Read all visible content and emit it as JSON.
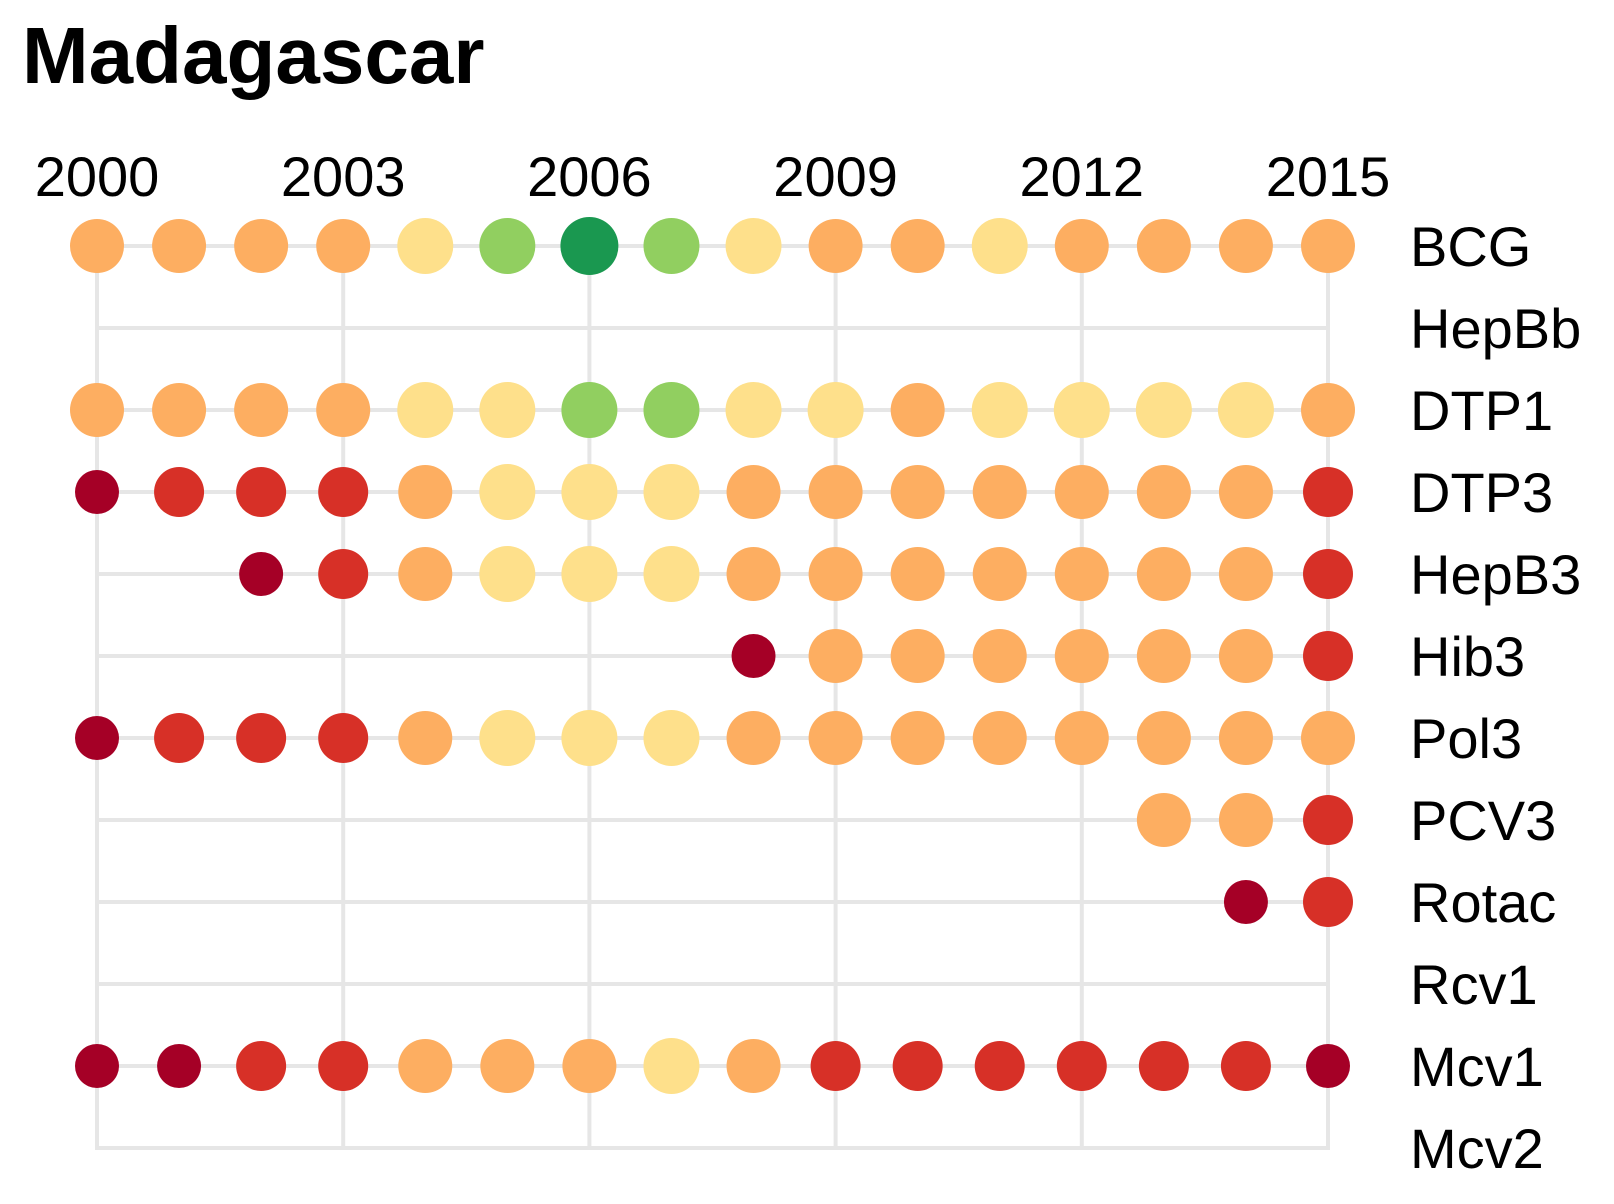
{
  "chart_data": {
    "type": "scatter",
    "title": "Madagascar",
    "x_ticks": [
      2000,
      2003,
      2006,
      2009,
      2012,
      2015
    ],
    "years": [
      2000,
      2001,
      2002,
      2003,
      2004,
      2005,
      2006,
      2007,
      2008,
      2009,
      2010,
      2011,
      2012,
      2013,
      2014,
      2015
    ],
    "grid": true,
    "legend": "none",
    "color_scale": {
      "1": "#a50026",
      "2": "#d73027",
      "3": "#fdae61",
      "4": "#fee08b",
      "5": "#91cf60",
      "6": "#1a9850"
    },
    "series": [
      {
        "name": "BCG",
        "values": [
          3,
          3,
          3,
          3,
          4,
          5,
          6,
          5,
          4,
          3,
          3,
          4,
          3,
          3,
          3,
          3
        ]
      },
      {
        "name": "HepBb",
        "values": [
          null,
          null,
          null,
          null,
          null,
          null,
          null,
          null,
          null,
          null,
          null,
          null,
          null,
          null,
          null,
          null
        ]
      },
      {
        "name": "DTP1",
        "values": [
          3,
          3,
          3,
          3,
          4,
          4,
          5,
          5,
          4,
          4,
          3,
          4,
          4,
          4,
          4,
          3
        ]
      },
      {
        "name": "DTP3",
        "values": [
          1,
          2,
          2,
          2,
          3,
          4,
          4,
          4,
          3,
          3,
          3,
          3,
          3,
          3,
          3,
          2
        ]
      },
      {
        "name": "HepB3",
        "values": [
          null,
          null,
          1,
          2,
          3,
          4,
          4,
          4,
          3,
          3,
          3,
          3,
          3,
          3,
          3,
          2
        ]
      },
      {
        "name": "Hib3",
        "values": [
          null,
          null,
          null,
          null,
          null,
          null,
          null,
          null,
          1,
          3,
          3,
          3,
          3,
          3,
          3,
          2
        ]
      },
      {
        "name": "Pol3",
        "values": [
          1,
          2,
          2,
          2,
          3,
          4,
          4,
          4,
          3,
          3,
          3,
          3,
          3,
          3,
          3,
          3
        ]
      },
      {
        "name": "PCV3",
        "values": [
          null,
          null,
          null,
          null,
          null,
          null,
          null,
          null,
          null,
          null,
          null,
          null,
          null,
          3,
          3,
          2
        ]
      },
      {
        "name": "Rotac",
        "values": [
          null,
          null,
          null,
          null,
          null,
          null,
          null,
          null,
          null,
          null,
          null,
          null,
          null,
          null,
          1,
          2
        ]
      },
      {
        "name": "Rcv1",
        "values": [
          null,
          null,
          null,
          null,
          null,
          null,
          null,
          null,
          null,
          null,
          null,
          null,
          null,
          null,
          null,
          null
        ]
      },
      {
        "name": "Mcv1",
        "values": [
          1,
          1,
          2,
          2,
          3,
          3,
          3,
          4,
          3,
          2,
          2,
          2,
          2,
          2,
          2,
          1
        ]
      },
      {
        "name": "Mcv2",
        "values": [
          null,
          null,
          null,
          null,
          null,
          null,
          null,
          null,
          null,
          null,
          null,
          null,
          null,
          null,
          null,
          null
        ]
      }
    ]
  }
}
